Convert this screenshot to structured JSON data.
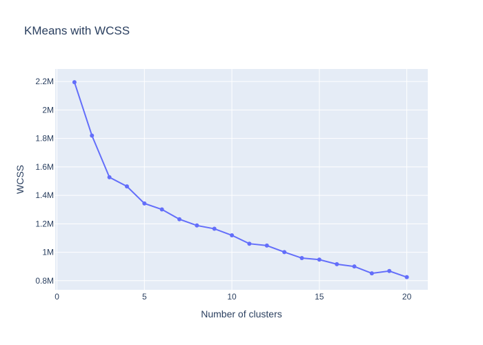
{
  "chart_data": {
    "type": "line",
    "title": "KMeans with WCSS",
    "xlabel": "Number of clusters",
    "ylabel": "WCSS",
    "x": [
      1,
      2,
      3,
      4,
      5,
      6,
      7,
      8,
      9,
      10,
      11,
      12,
      13,
      14,
      15,
      16,
      17,
      18,
      19,
      20
    ],
    "series": [
      {
        "values": [
          2195000,
          1820000,
          1527000,
          1463000,
          1343000,
          1301000,
          1232000,
          1188000,
          1165000,
          1119000,
          1060000,
          1047000,
          1001000,
          959000,
          948000,
          916000,
          900000,
          852000,
          868000,
          825000
        ]
      }
    ],
    "xlim": [
      -0.1,
      21.2
    ],
    "ylim": [
      736000,
      2288000
    ],
    "xticks": [
      0,
      5,
      10,
      15,
      20
    ],
    "xtick_labels": [
      "0",
      "5",
      "10",
      "15",
      "20"
    ],
    "yticks": [
      800000,
      1000000,
      1200000,
      1400000,
      1600000,
      1800000,
      2000000,
      2200000
    ],
    "ytick_labels": [
      "0.8M",
      "1M",
      "1.2M",
      "1.4M",
      "1.6M",
      "1.8M",
      "2M",
      "2.2M"
    ],
    "grid": true,
    "colors": {
      "line": "#636efa",
      "plot_bg": "#e5ecf6",
      "grid": "#ffffff",
      "text": "#2a3f5f"
    }
  }
}
